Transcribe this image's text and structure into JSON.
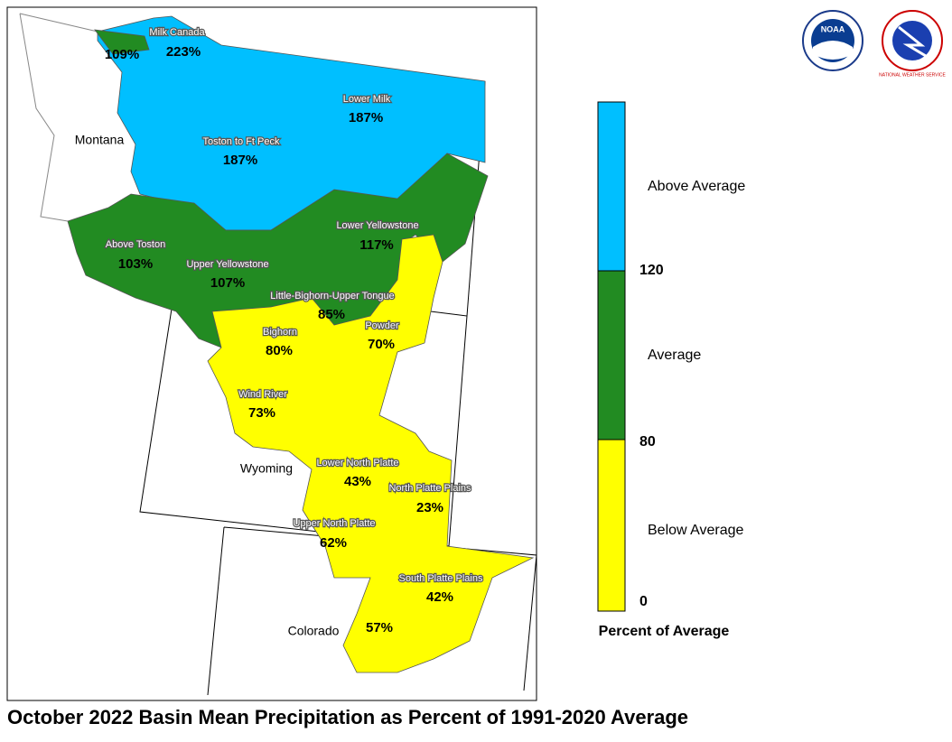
{
  "title": "October 2022 Basin Mean Precipitation as Percent of 1991-2020 Average",
  "states": [
    "Montana",
    "Wyoming",
    "Colorado"
  ],
  "basins": [
    {
      "name": "Milk Canada",
      "percent": "223%"
    },
    {
      "percent": "109%"
    },
    {
      "name": "Lower Milk",
      "percent": "187%"
    },
    {
      "name": "Toston to Ft Peck",
      "percent": "187%"
    },
    {
      "name": "Above Toston",
      "percent": "103%"
    },
    {
      "name": "Upper Yellowstone",
      "percent": "107%"
    },
    {
      "name": "Lower Yellowstone",
      "percent": "117%"
    },
    {
      "name": "Little-Bighorn-Upper Tongue",
      "percent": "85%"
    },
    {
      "name": "Bighorn",
      "percent": "80%"
    },
    {
      "name": "Powder",
      "percent": "70%"
    },
    {
      "name": "Wind River",
      "percent": "73%"
    },
    {
      "name": "Lower North Platte",
      "percent": "43%"
    },
    {
      "name": "North Platte Plains",
      "percent": "23%"
    },
    {
      "name": "Upper North Platte",
      "percent": "62%"
    },
    {
      "name": "South Platte Plains",
      "percent": "42%"
    },
    {
      "percent": "57%"
    }
  ],
  "legend": {
    "categories": [
      "Above Average",
      "Average",
      "Below Average"
    ],
    "ticks": [
      "120",
      "80",
      "0"
    ],
    "title": "Percent of Average"
  },
  "logos": {
    "noaa": "NOAA",
    "nws": "NATIONAL WEATHER SERVICE"
  }
}
